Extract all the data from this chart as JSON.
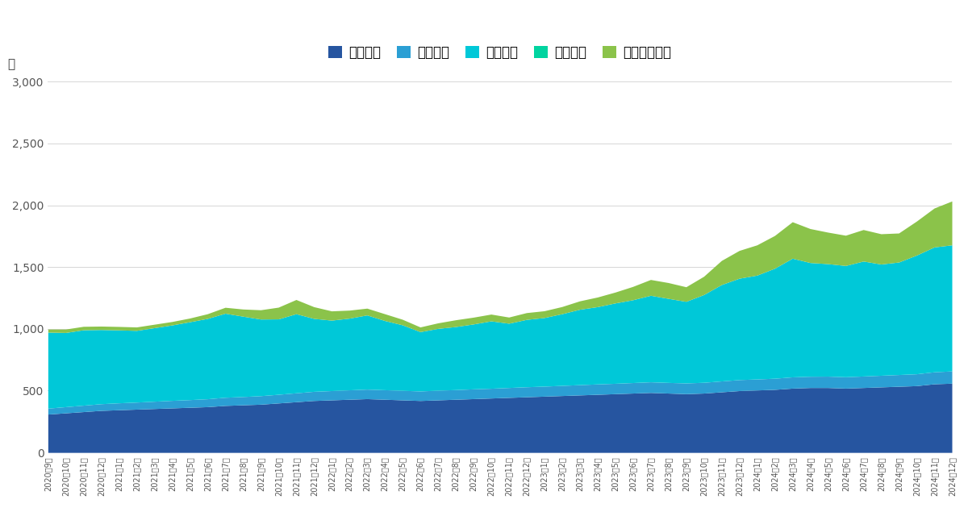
{
  "ylabel": "万",
  "ylim": [
    0,
    3000
  ],
  "yticks": [
    0,
    500,
    1000,
    1500,
    2000,
    2500,
    3000
  ],
  "legend_labels": [
    "現金合計",
    "保険合計",
    "株式合計",
    "債券合計",
    "暗号資産合計"
  ],
  "colors": [
    "#2655a0",
    "#2b9fd4",
    "#00c8d8",
    "#00d4a0",
    "#8bc34a"
  ],
  "background_color": "#ffffff",
  "dates": [
    "2020年9月",
    "2020年10月",
    "2020年11月",
    "2020年12月",
    "2021年1月",
    "2021年2月",
    "2021年3月",
    "2021年4月",
    "2021年5月",
    "2021年6月",
    "2021年7月",
    "2021年8月",
    "2021年9月",
    "2021年10月",
    "2021年11月",
    "2021年12月",
    "2022年1月",
    "2022年2月",
    "2022年3月",
    "2022年4月",
    "2022年5月",
    "2022年6月",
    "2022年7月",
    "2022年8月",
    "2022年9月",
    "2022年10月",
    "2022年11月",
    "2022年12月",
    "2023年1月",
    "2023年2月",
    "2023年3月",
    "2023年4月",
    "2023年5月",
    "2023年6月",
    "2023年7月",
    "2023年8月",
    "2023年9月",
    "2023年10月",
    "2023年11月",
    "2023年12月",
    "2024年1月",
    "2024年2月",
    "2024年3月",
    "2024年4月",
    "2024年5月",
    "2024年6月",
    "2024年7月",
    "2024年8月",
    "2024年9月",
    "2024年10月",
    "2024年11月",
    "2024年12月"
  ],
  "genkin": [
    310,
    320,
    330,
    340,
    345,
    350,
    355,
    360,
    365,
    370,
    380,
    385,
    390,
    400,
    410,
    420,
    425,
    430,
    435,
    430,
    425,
    420,
    425,
    430,
    435,
    440,
    445,
    450,
    455,
    460,
    465,
    470,
    475,
    480,
    485,
    480,
    475,
    480,
    490,
    500,
    505,
    510,
    520,
    525,
    525,
    520,
    525,
    530,
    535,
    540,
    555,
    560
  ],
  "hoken": [
    48,
    50,
    52,
    54,
    56,
    57,
    59,
    61,
    62,
    64,
    66,
    67,
    69,
    70,
    72,
    74,
    75,
    76,
    77,
    77,
    77,
    77,
    78,
    78,
    79,
    79,
    80,
    81,
    81,
    82,
    83,
    84,
    84,
    85,
    86,
    86,
    87,
    87,
    88,
    89,
    89,
    90,
    91,
    91,
    92,
    92,
    93,
    94,
    95,
    96,
    97,
    99
  ],
  "kabushiki": [
    615,
    600,
    610,
    600,
    590,
    580,
    595,
    610,
    630,
    650,
    680,
    650,
    620,
    610,
    640,
    590,
    570,
    580,
    600,
    560,
    530,
    480,
    500,
    510,
    525,
    545,
    520,
    545,
    555,
    580,
    610,
    625,
    650,
    670,
    700,
    680,
    660,
    710,
    780,
    820,
    840,
    890,
    960,
    920,
    910,
    900,
    930,
    900,
    910,
    960,
    1010,
    1020
  ],
  "saiken": [
    0,
    0,
    0,
    0,
    0,
    0,
    0,
    0,
    0,
    0,
    0,
    0,
    0,
    0,
    0,
    0,
    0,
    0,
    0,
    0,
    0,
    0,
    0,
    0,
    0,
    0,
    0,
    0,
    0,
    0,
    0,
    0,
    0,
    0,
    0,
    0,
    0,
    0,
    0,
    0,
    0,
    0,
    0,
    0,
    0,
    0,
    0,
    0,
    0,
    0,
    0,
    0
  ],
  "crypto": [
    25,
    28,
    28,
    28,
    28,
    28,
    28,
    28,
    30,
    38,
    48,
    58,
    75,
    95,
    115,
    95,
    75,
    65,
    55,
    55,
    45,
    38,
    45,
    55,
    55,
    55,
    50,
    55,
    55,
    58,
    68,
    78,
    88,
    108,
    128,
    128,
    118,
    148,
    195,
    225,
    245,
    265,
    295,
    275,
    255,
    245,
    255,
    245,
    235,
    275,
    315,
    355
  ]
}
